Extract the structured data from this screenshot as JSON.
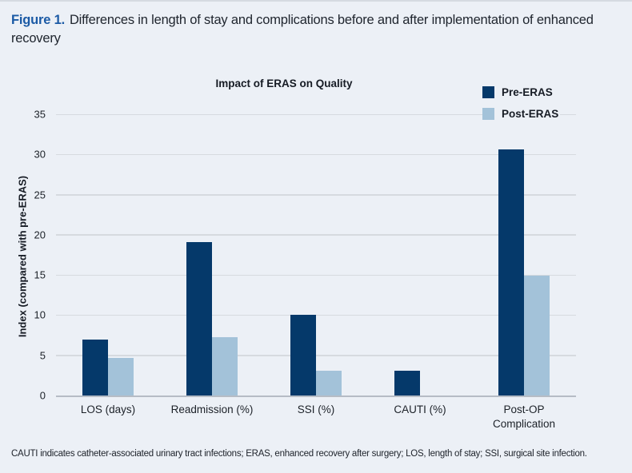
{
  "figure": {
    "label": "Figure 1.",
    "caption": "Differences in length of stay and complications before and after implementation of enhanced recovery"
  },
  "chart_data": {
    "type": "bar",
    "title": "Impact of ERAS on Quality",
    "ylabel": "Index (compared with pre-ERAS)",
    "categories": [
      "LOS (days)",
      "Readmission (%)",
      "SSI (%)",
      "CAUTI (%)",
      "Post-OP Complication"
    ],
    "series": [
      {
        "name": "Pre-ERAS",
        "color": "#05396a",
        "values": [
          7.0,
          19.1,
          10.0,
          3.1,
          30.6
        ]
      },
      {
        "name": "Post-ERAS",
        "color": "#a3c2d9",
        "values": [
          4.7,
          7.3,
          3.1,
          0,
          14.9
        ]
      }
    ],
    "ylim": [
      0,
      35
    ],
    "ytick_step": 5,
    "grid": true,
    "legend_position": "top-right"
  },
  "footnote": "CAUTI indicates catheter-associated urinary tract infections; ERAS, enhanced recovery after surgery; LOS, length of stay; SSI, surgical site infection.",
  "colors": {
    "background": "#ecf0f6",
    "gridline": "#d6dadf",
    "axis_line": "#b6bcc5",
    "figure_label_blue": "#1b5aa5",
    "text_dark": "#161b24"
  }
}
